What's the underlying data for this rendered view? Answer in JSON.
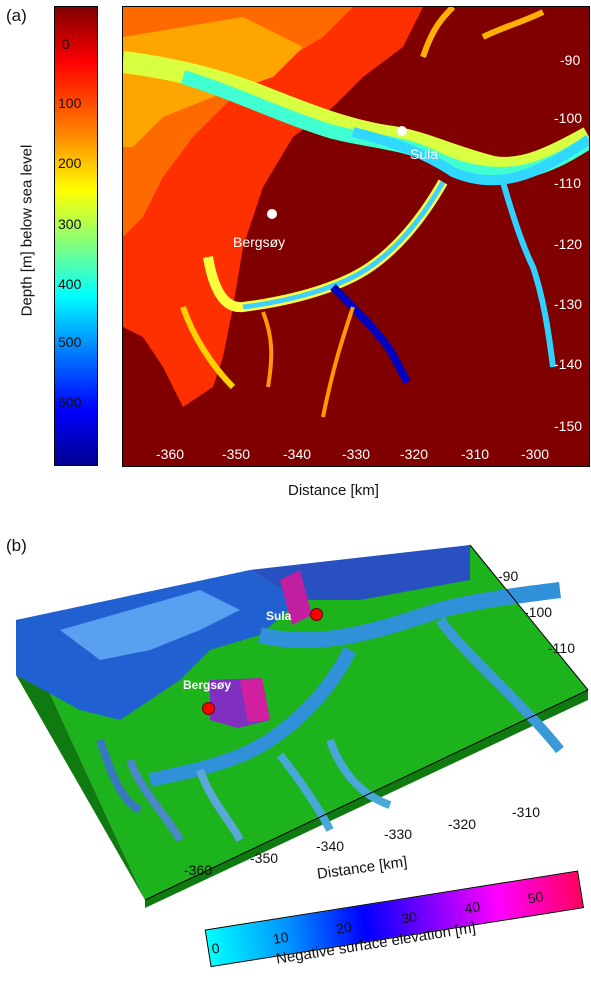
{
  "panel_a": {
    "label": "(a)",
    "colorbar": {
      "title": "Depth [m] below sea level",
      "ticks": [
        "0",
        "100",
        "200",
        "300",
        "400",
        "500",
        "600"
      ],
      "colormap": [
        "#7f0000",
        "#ff0000",
        "#ff7f00",
        "#ffff00",
        "#80ff80",
        "#00ffff",
        "#0080ff",
        "#0000ff",
        "#00008f"
      ]
    },
    "places": [
      {
        "name": "Sula"
      },
      {
        "name": "Bergsøy"
      }
    ],
    "x_axis": {
      "title": "Distance [km]",
      "ticks": [
        "-360",
        "-350",
        "-340",
        "-330",
        "-320",
        "-310",
        "-300"
      ]
    },
    "y_axis": {
      "ticks": [
        "-90",
        "-100",
        "-110",
        "-120",
        "-130",
        "-140",
        "-150"
      ]
    },
    "land_color": "#800000",
    "sea_shallow_color": "#ff2a00"
  },
  "panel_b": {
    "label": "(b)",
    "places": [
      {
        "name": "Sula"
      },
      {
        "name": "Bergsøy"
      }
    ],
    "x_axis": {
      "title": "Distance [km]",
      "ticks": [
        "-360",
        "-350",
        "-340",
        "-330",
        "-320",
        "-310"
      ]
    },
    "y_axis": {
      "ticks": [
        "-90",
        "-100",
        "-110"
      ]
    },
    "colorbar": {
      "title": "Negative surface elevation [m]",
      "ticks": [
        "0",
        "10",
        "20",
        "30",
        "40",
        "50"
      ],
      "colormap": [
        "#00ffff",
        "#0080ff",
        "#0000ff",
        "#8000ff",
        "#ff00ff",
        "#ff0060"
      ]
    },
    "land_color": "#1aa81a",
    "marker_color": "#ff0000"
  }
}
